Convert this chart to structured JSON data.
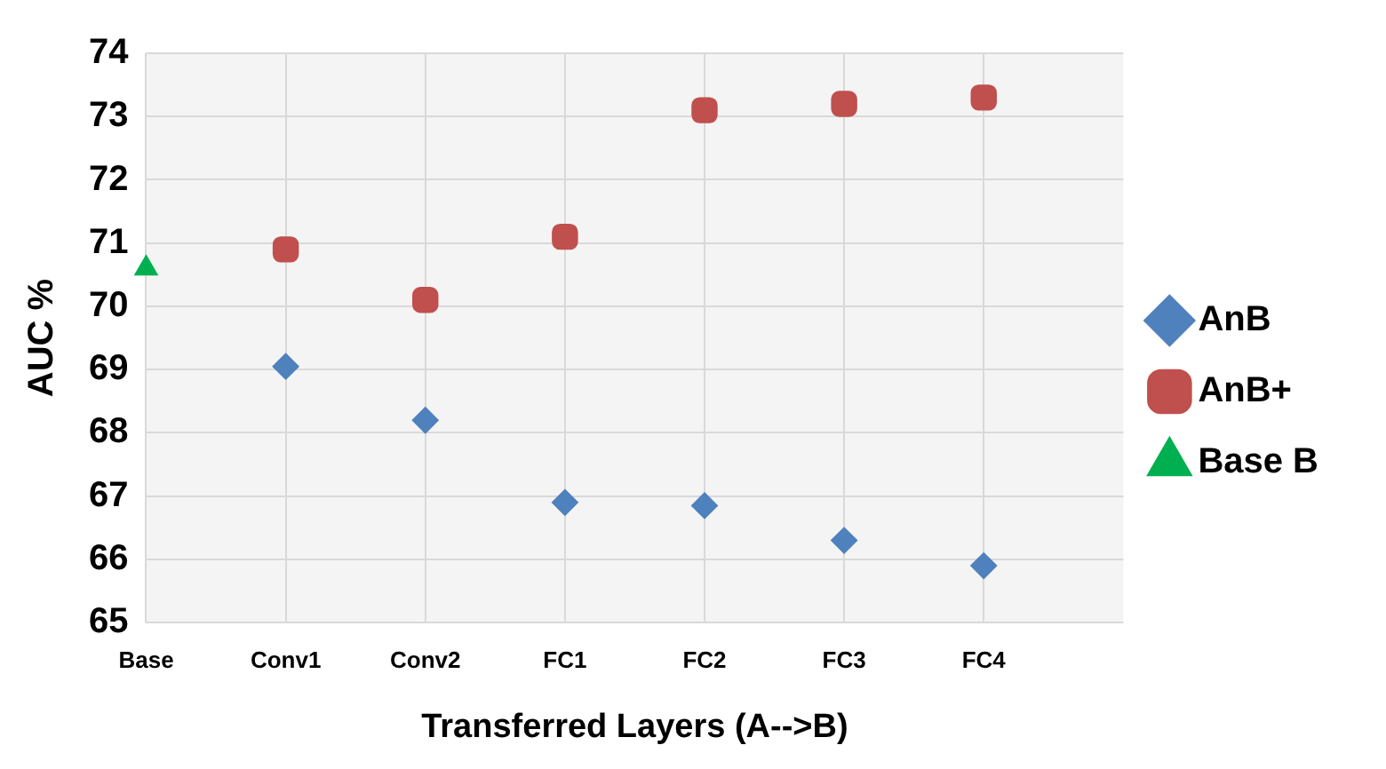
{
  "chart_data": {
    "type": "scatter",
    "xlabel": "Transferred Layers (A-->B)",
    "ylabel": "AUC %",
    "categories": [
      "Base",
      "Conv1",
      "Conv2",
      "FC1",
      "FC2",
      "FC3",
      "FC4"
    ],
    "series": [
      {
        "name": "AnB",
        "color": "#4f81bd",
        "marker": "diamond",
        "values": [
          null,
          69.05,
          68.2,
          66.9,
          66.85,
          66.3,
          65.9
        ]
      },
      {
        "name": "AnB+",
        "color": "#c0504d",
        "marker": "square",
        "values": [
          null,
          70.9,
          70.1,
          71.1,
          73.1,
          73.2,
          73.3
        ]
      },
      {
        "name": "Base B",
        "color": "#00b050",
        "marker": "triangle",
        "values": [
          70.6,
          null,
          null,
          null,
          null,
          null,
          null
        ]
      }
    ],
    "ylim": [
      65,
      74
    ],
    "yticks": [
      65,
      66,
      67,
      68,
      69,
      70,
      71,
      72,
      73,
      74
    ],
    "grid": true,
    "legend": "right"
  }
}
